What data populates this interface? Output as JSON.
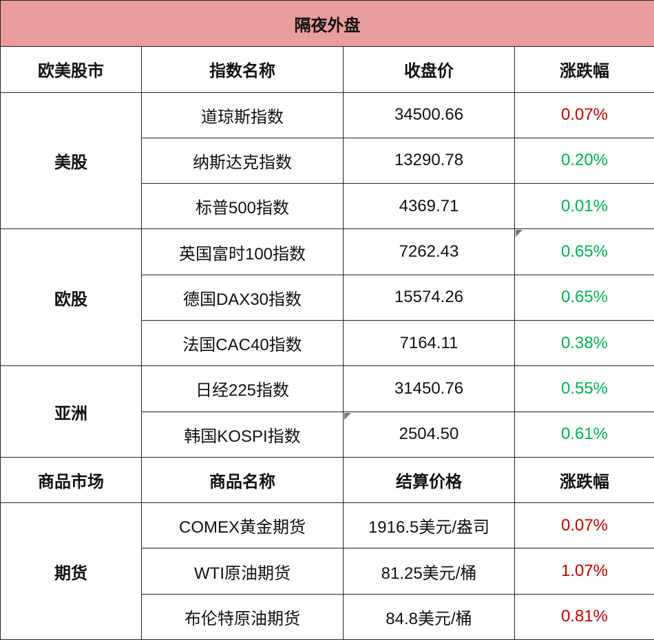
{
  "title": "隔夜外盘",
  "sections": [
    {
      "header": [
        "欧美股市",
        "指数名称",
        "收盘价",
        "涨跌幅"
      ],
      "groups": [
        {
          "name": "美股",
          "rows": [
            {
              "name": "道琼斯指数",
              "price": "34500.66",
              "change": "0.07%",
              "color": "#c00000"
            },
            {
              "name": "纳斯达克指数",
              "price": "13290.78",
              "change": "0.20%",
              "color": "#00b050"
            },
            {
              "name": "标普500指数",
              "price": "4369.71",
              "change": "0.01%",
              "color": "#00b050"
            }
          ]
        },
        {
          "name": "欧股",
          "rows": [
            {
              "name": "英国富时100指数",
              "price": "7262.43",
              "change": "0.65%",
              "color": "#00b050"
            },
            {
              "name": "德国DAX30指数",
              "price": "15574.26",
              "change": "0.65%",
              "color": "#00b050"
            },
            {
              "name": "法国CAC40指数",
              "price": "7164.11",
              "change": "0.38%",
              "color": "#00b050"
            }
          ]
        },
        {
          "name": "亚洲",
          "rows": [
            {
              "name": "日经225指数",
              "price": "31450.76",
              "change": "0.55%",
              "color": "#00b050"
            },
            {
              "name": "韩国KOSPI指数",
              "price": "2504.50",
              "change": "0.61%",
              "color": "#00b050"
            }
          ]
        }
      ]
    },
    {
      "header": [
        "商品市场",
        "商品名称",
        "结算价格",
        "涨跌幅"
      ],
      "groups": [
        {
          "name": "期货",
          "rows": [
            {
              "name": "COMEX黄金期货",
              "price": "1916.5美元/盎司",
              "change": "0.07%",
              "color": "#c00000"
            },
            {
              "name": "WTI原油期货",
              "price": "81.25美元/桶",
              "change": "1.07%",
              "color": "#c00000"
            },
            {
              "name": "布伦特原油期货",
              "price": "84.8美元/桶",
              "change": "0.81%",
              "color": "#c00000"
            }
          ]
        }
      ]
    }
  ]
}
